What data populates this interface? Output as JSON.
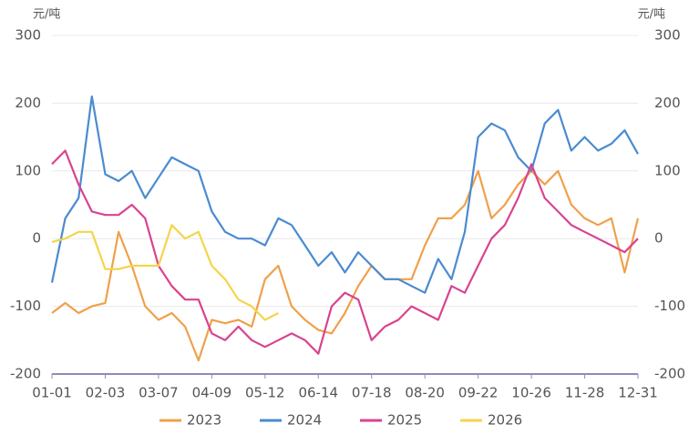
{
  "chart_data": {
    "type": "line",
    "y_label": "元/吨",
    "y2_label": "元/吨",
    "categories": [
      "01-01",
      null,
      null,
      null,
      "02-03",
      null,
      null,
      null,
      "03-07",
      null,
      null,
      null,
      "04-09",
      null,
      null,
      null,
      "05-12",
      null,
      null,
      null,
      "06-14",
      null,
      null,
      null,
      "07-18",
      null,
      null,
      null,
      "08-20",
      null,
      null,
      null,
      "09-22",
      null,
      null,
      null,
      "10-26",
      null,
      null,
      null,
      "11-28",
      null,
      null,
      null,
      "12-31"
    ],
    "series": [
      {
        "name": "2023",
        "color": "#f0a04b",
        "values": [
          -110,
          -95,
          -110,
          -100,
          -95,
          10,
          -40,
          -100,
          -120,
          -110,
          -130,
          -180,
          -120,
          -125,
          -120,
          -130,
          -60,
          -40,
          -100,
          -120,
          -135,
          -140,
          -110,
          -70,
          -40,
          -60,
          -60,
          -60,
          -10,
          30,
          30,
          50,
          100,
          30,
          50,
          80,
          100,
          80,
          100,
          50,
          30,
          20,
          30,
          -50,
          30
        ]
      },
      {
        "name": "2024",
        "color": "#4a8bd0",
        "values": [
          -65,
          30,
          60,
          210,
          95,
          85,
          100,
          60,
          90,
          120,
          110,
          100,
          40,
          10,
          0,
          0,
          -10,
          30,
          20,
          -10,
          -40,
          -20,
          -50,
          -20,
          -40,
          -60,
          -60,
          -70,
          -80,
          -30,
          -60,
          10,
          150,
          170,
          160,
          120,
          100,
          170,
          190,
          130,
          150,
          130,
          140,
          160,
          125
        ]
      },
      {
        "name": "2025",
        "color": "#d9438f",
        "values": [
          110,
          130,
          80,
          40,
          35,
          35,
          50,
          30,
          -40,
          -70,
          -90,
          -90,
          -140,
          -150,
          -130,
          -150,
          -160,
          -150,
          -140,
          -150,
          -170,
          -100,
          -80,
          -90,
          -150,
          -130,
          -120,
          -100,
          -110,
          -120,
          -70,
          -80,
          -40,
          0,
          20,
          60,
          110,
          60,
          40,
          20,
          10,
          0,
          -10,
          -20,
          0
        ]
      },
      {
        "name": "2026",
        "color": "#f5d44a",
        "values": [
          -5,
          0,
          10,
          10,
          -45,
          -45,
          -40,
          -40,
          -40,
          20,
          0,
          10,
          -40,
          -60,
          -90,
          -100,
          -120,
          -110,
          null,
          null,
          null,
          null,
          null,
          null,
          null,
          null,
          null,
          null,
          null,
          null,
          null,
          null,
          null,
          null,
          null,
          null,
          null,
          null,
          null,
          null,
          null,
          null,
          null,
          null,
          null
        ]
      }
    ],
    "ylim": [
      -200,
      300
    ],
    "yticks": [
      -200,
      -100,
      0,
      100,
      200,
      300
    ],
    "y2lim": [
      -200,
      300
    ],
    "y2ticks": [
      -200,
      -100,
      0,
      100,
      200,
      300
    ],
    "grid": true,
    "legend": "bottom"
  }
}
